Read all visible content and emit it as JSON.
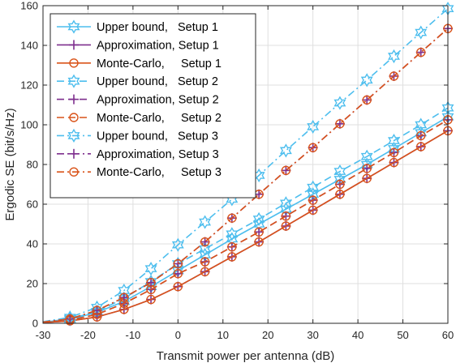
{
  "chart_data": {
    "type": "line",
    "xlabel": "Transmit power per antenna (dB)",
    "ylabel": "Ergodic SE (bit/s/Hz)",
    "xlim": [
      -30,
      60
    ],
    "ylim": [
      0,
      160
    ],
    "xticks": [
      "-30",
      "-20",
      "-10",
      "0",
      "10",
      "20",
      "30",
      "40",
      "50",
      "60"
    ],
    "yticks": [
      "0",
      "20",
      "40",
      "60",
      "80",
      "100",
      "120",
      "140",
      "160"
    ],
    "grid": true,
    "legend_position": "top-left",
    "x": [
      -30,
      -24,
      -18,
      -12,
      -6,
      0,
      6,
      12,
      18,
      24,
      30,
      36,
      42,
      48,
      54,
      60
    ],
    "series": [
      {
        "name": "Upper bound,   Setup 1",
        "color": "#4DBEEE",
        "dash": "solid",
        "marker": "hexagram",
        "values": [
          0.6,
          2.0,
          5.5,
          11.0,
          18.5,
          26.5,
          34.5,
          42.5,
          50.0,
          57.5,
          65.0,
          72.5,
          80.0,
          88.0,
          96.0,
          104.0
        ]
      },
      {
        "name": "Approximation, Setup 1",
        "color": "#7E2F8E",
        "dash": "solid",
        "marker": "plus",
        "values": [
          0.4,
          1.2,
          3.2,
          7.0,
          12.0,
          18.5,
          26.0,
          33.5,
          41.0,
          49.0,
          57.0,
          65.0,
          73.0,
          81.0,
          89.0,
          97.0
        ]
      },
      {
        "name": "Monte-Carlo,     Setup 1",
        "color": "#D95319",
        "dash": "solid",
        "marker": "circle",
        "values": [
          0.4,
          1.2,
          3.2,
          7.0,
          12.0,
          18.5,
          26.0,
          33.5,
          41.0,
          49.0,
          57.0,
          65.0,
          73.0,
          81.0,
          89.0,
          97.0
        ]
      },
      {
        "name": "Upper bound,   Setup 2",
        "color": "#4DBEEE",
        "dash": "dash",
        "marker": "hexagram",
        "values": [
          0.6,
          2.2,
          6.0,
          12.5,
          21.0,
          30.0,
          37.5,
          45.0,
          52.5,
          60.5,
          68.5,
          76.5,
          84.0,
          92.0,
          100.0,
          108.5
        ]
      },
      {
        "name": "Approximation, Setup 2",
        "color": "#7E2F8E",
        "dash": "dash",
        "marker": "plus",
        "values": [
          0.5,
          1.6,
          4.5,
          10.0,
          17.0,
          25.0,
          31.0,
          38.5,
          46.0,
          54.0,
          62.0,
          70.0,
          78.0,
          86.0,
          94.5,
          102.5
        ]
      },
      {
        "name": "Monte-Carlo,     Setup 2",
        "color": "#D95319",
        "dash": "dash",
        "marker": "circle",
        "values": [
          0.5,
          1.6,
          4.5,
          10.0,
          17.0,
          25.0,
          31.0,
          38.5,
          46.0,
          54.0,
          62.0,
          70.0,
          78.0,
          86.0,
          94.5,
          102.5
        ]
      },
      {
        "name": "Upper bound,   Setup 3",
        "color": "#4DBEEE",
        "dash": "dashdot",
        "marker": "hexagram",
        "values": [
          0.8,
          3.0,
          8.0,
          16.5,
          27.5,
          39.5,
          51.0,
          62.5,
          74.5,
          87.0,
          99.0,
          111.0,
          122.5,
          134.5,
          146.5,
          158.5
        ]
      },
      {
        "name": "Approximation, Setup 3",
        "color": "#7E2F8E",
        "dash": "dashdot",
        "marker": "plus",
        "values": [
          0.6,
          2.2,
          6.5,
          13.0,
          20.5,
          30.0,
          41.0,
          53.0,
          65.0,
          77.0,
          88.5,
          100.5,
          112.5,
          124.5,
          136.5,
          148.5
        ]
      },
      {
        "name": "Monte-Carlo,     Setup 3",
        "color": "#D95319",
        "dash": "dashdot",
        "marker": "circle",
        "values": [
          0.6,
          2.2,
          6.5,
          13.0,
          20.5,
          30.0,
          41.0,
          53.0,
          65.0,
          77.0,
          88.5,
          100.5,
          112.5,
          124.5,
          136.5,
          148.5
        ]
      }
    ]
  }
}
